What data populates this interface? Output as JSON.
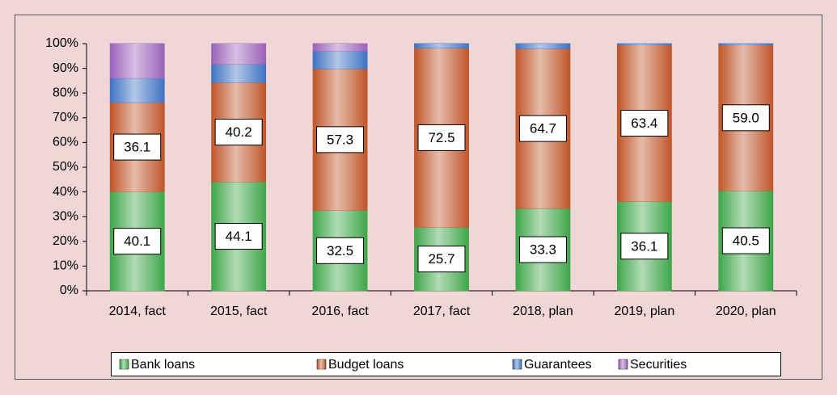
{
  "chart_data": {
    "type": "stacked-bar",
    "categories": [
      "2014, fact",
      "2015, fact",
      "2016, fact",
      "2017, fact",
      "2018, plan",
      "2019, plan",
      "2020, plan"
    ],
    "series": [
      {
        "name": "Bank loans",
        "color": "#3fa64a",
        "values": [
          40.1,
          44.1,
          32.5,
          25.7,
          33.3,
          36.1,
          40.5
        ],
        "value_labels": [
          "40.1",
          "44.1",
          "32.5",
          "25.7",
          "33.3",
          "36.1",
          "40.5"
        ]
      },
      {
        "name": "Budget loans",
        "color": "#c0562a",
        "values": [
          36.1,
          40.2,
          57.3,
          72.5,
          64.7,
          63.4,
          59.0
        ],
        "value_labels": [
          "36.1",
          "40.2",
          "57.3",
          "72.5",
          "64.7",
          "63.4",
          "59.0"
        ]
      },
      {
        "name": "Guarantees",
        "color": "#3f73c4",
        "values": [
          9.8,
          7.4,
          7.2,
          1.8,
          2.0,
          0.5,
          0.5
        ]
      },
      {
        "name": "Securities",
        "color": "#9b62b8",
        "values": [
          14.0,
          8.3,
          3.0,
          0,
          0,
          0,
          0
        ]
      }
    ],
    "ylim": [
      0,
      100
    ],
    "yticks": [
      {
        "value": 0,
        "label": "0%"
      },
      {
        "value": 10,
        "label": "10%"
      },
      {
        "value": 20,
        "label": "20%"
      },
      {
        "value": 30,
        "label": "30%"
      },
      {
        "value": 40,
        "label": "40%"
      },
      {
        "value": 50,
        "label": "50%"
      },
      {
        "value": 60,
        "label": "60%"
      },
      {
        "value": 70,
        "label": "70%"
      },
      {
        "value": 80,
        "label": "80%"
      },
      {
        "value": 90,
        "label": "90%"
      },
      {
        "value": 100,
        "label": "100%"
      }
    ],
    "legend": "bottom"
  }
}
